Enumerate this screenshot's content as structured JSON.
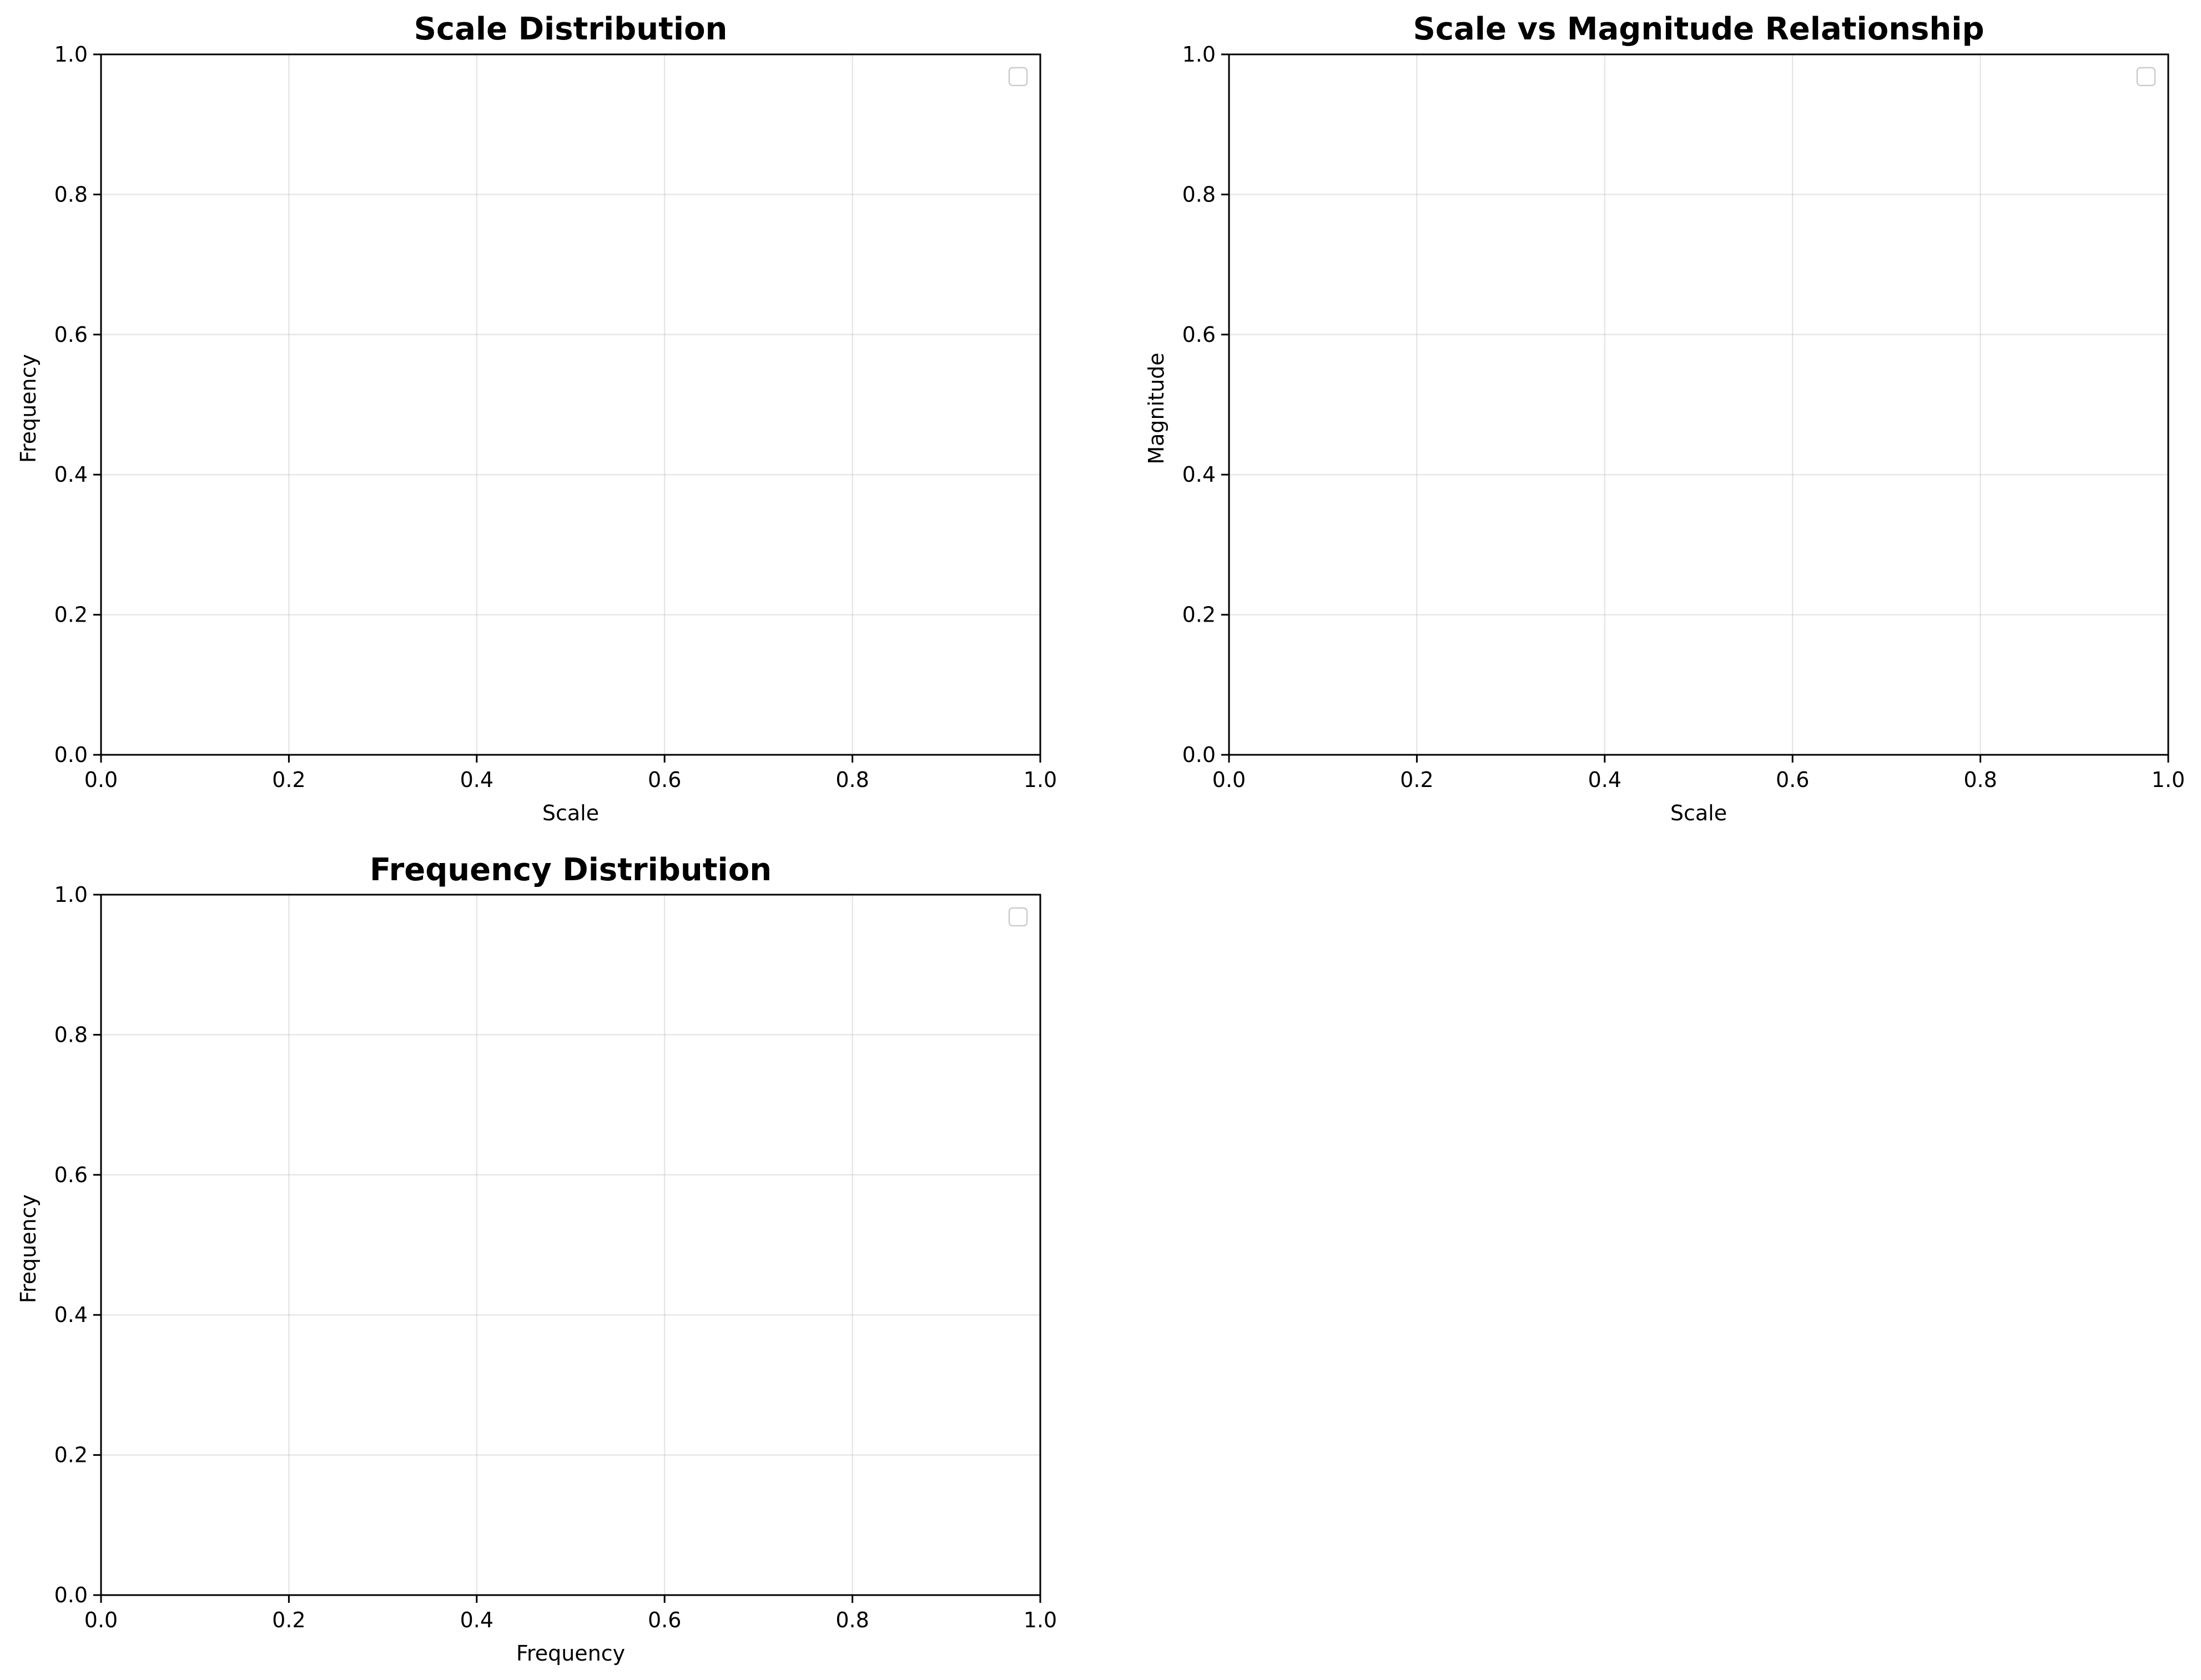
{
  "chart_data": [
    {
      "type": "histogram",
      "title": "Scale Distribution",
      "xlabel": "Scale",
      "ylabel": "Frequency",
      "xlim": [
        0.0,
        1.0
      ],
      "ylim": [
        0.0,
        1.0
      ],
      "xticks": [
        "0.0",
        "0.2",
        "0.4",
        "0.6",
        "0.8",
        "1.0"
      ],
      "yticks": [
        "0.0",
        "0.2",
        "0.4",
        "0.6",
        "0.8",
        "1.0"
      ],
      "series": [],
      "grid": true,
      "legend": "top-right (empty)"
    },
    {
      "type": "scatter",
      "title": "Scale vs Magnitude Relationship",
      "xlabel": "Scale",
      "ylabel": "Magnitude",
      "xlim": [
        0.0,
        1.0
      ],
      "ylim": [
        0.0,
        1.0
      ],
      "xticks": [
        "0.0",
        "0.2",
        "0.4",
        "0.6",
        "0.8",
        "1.0"
      ],
      "yticks": [
        "0.0",
        "0.2",
        "0.4",
        "0.6",
        "0.8",
        "1.0"
      ],
      "series": [],
      "grid": true,
      "legend": "top-right (empty)"
    },
    {
      "type": "histogram",
      "title": "Frequency Distribution",
      "xlabel": "Frequency",
      "ylabel": "Frequency",
      "xlim": [
        0.0,
        1.0
      ],
      "ylim": [
        0.0,
        1.0
      ],
      "xticks": [
        "0.0",
        "0.2",
        "0.4",
        "0.6",
        "0.8",
        "1.0"
      ],
      "yticks": [
        "0.0",
        "0.2",
        "0.4",
        "0.6",
        "0.8",
        "1.0"
      ],
      "series": [],
      "grid": true,
      "legend": "top-right (empty)"
    }
  ]
}
